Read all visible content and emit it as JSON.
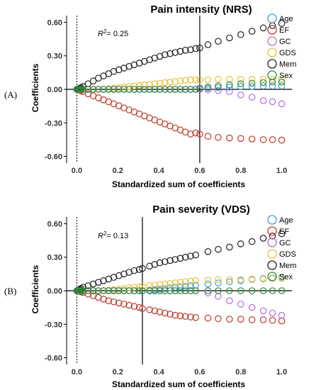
{
  "panels": [
    {
      "label": "(A)"
    },
    {
      "label": "(B)"
    }
  ],
  "chart_data": [
    {
      "type": "scatter",
      "title": "Pain intensity (NRS)",
      "xlabel": "Standardized sum of coefficients",
      "ylabel": "Coefficients",
      "annotation_prefix": "R",
      "annotation_sup": "2",
      "annotation_value": "= 0.25",
      "xlim": [
        -0.05,
        1.05
      ],
      "ylim": [
        -0.66,
        0.66
      ],
      "xticks": [
        "0.0",
        "0.2",
        "0.4",
        "0.6",
        "0.8",
        "1.0"
      ],
      "yticks": [
        "0.60",
        "0.30",
        "0.00",
        "-0.30",
        "-0.60"
      ],
      "reference_line_x": 0.6,
      "dotted_line_x": 0.0,
      "legend_position": "top-right",
      "x": [
        0.0,
        0.005,
        0.01,
        0.015,
        0.02,
        0.03,
        0.055,
        0.08,
        0.105,
        0.13,
        0.155,
        0.18,
        0.205,
        0.23,
        0.255,
        0.28,
        0.305,
        0.33,
        0.355,
        0.38,
        0.405,
        0.43,
        0.455,
        0.48,
        0.505,
        0.53,
        0.555,
        0.58,
        0.6,
        0.64,
        0.69,
        0.745,
        0.8,
        0.855,
        0.91,
        0.955,
        1.0
      ],
      "series": [
        {
          "name": "Age",
          "color": "#3da0d8",
          "values": [
            0.0,
            0.0,
            0.0,
            0.0,
            0.0,
            0.0,
            0.0,
            0.0,
            0.0,
            0.0,
            0.0,
            0.0,
            0.0,
            0.0,
            0.0,
            0.0,
            0.0,
            0.0,
            0.0,
            0.0,
            0.0,
            0.0,
            0.0,
            0.0,
            0.0,
            0.0,
            0.0,
            0.0,
            0.0,
            0.01,
            0.015,
            0.02,
            0.025,
            0.025,
            0.03,
            0.03,
            0.03
          ]
        },
        {
          "name": "EF",
          "color": "#c0392b",
          "values": [
            0.0,
            -0.002,
            -0.005,
            -0.008,
            -0.012,
            -0.02,
            -0.04,
            -0.058,
            -0.076,
            -0.094,
            -0.112,
            -0.13,
            -0.148,
            -0.166,
            -0.184,
            -0.202,
            -0.22,
            -0.238,
            -0.256,
            -0.274,
            -0.292,
            -0.31,
            -0.328,
            -0.346,
            -0.364,
            -0.382,
            -0.4,
            -0.39,
            -0.4,
            -0.42,
            -0.43,
            -0.435,
            -0.44,
            -0.445,
            -0.45,
            -0.45,
            -0.455
          ]
        },
        {
          "name": "GC",
          "color": "#b36be0",
          "values": [
            0.0,
            0.0,
            0.0,
            0.0,
            0.0,
            0.0,
            0.0,
            0.0,
            0.0,
            0.0,
            0.0,
            0.0,
            0.0,
            0.0,
            0.0,
            0.0,
            0.0,
            0.0,
            0.0,
            0.0,
            0.0,
            0.0,
            0.0,
            0.0,
            0.0,
            0.0,
            0.0,
            0.0,
            0.0,
            -0.005,
            -0.01,
            -0.02,
            -0.05,
            -0.07,
            -0.1,
            -0.11,
            -0.13
          ]
        },
        {
          "name": "GDS",
          "color": "#e8c23a",
          "values": [
            0.0,
            0.0,
            0.0,
            0.0,
            0.0,
            0.0,
            0.0,
            0.0,
            0.0,
            0.0,
            0.005,
            0.01,
            0.015,
            0.02,
            0.025,
            0.03,
            0.035,
            0.04,
            0.045,
            0.05,
            0.055,
            0.06,
            0.065,
            0.07,
            0.075,
            0.08,
            0.085,
            0.085,
            0.085,
            0.085,
            0.09,
            0.09,
            0.09,
            0.09,
            0.09,
            0.09,
            0.09
          ]
        },
        {
          "name": "Mem",
          "color": "#222222",
          "values": [
            0.0,
            0.003,
            0.006,
            0.01,
            0.015,
            0.025,
            0.05,
            0.075,
            0.1,
            0.12,
            0.14,
            0.16,
            0.175,
            0.19,
            0.205,
            0.22,
            0.235,
            0.25,
            0.265,
            0.28,
            0.295,
            0.31,
            0.32,
            0.33,
            0.34,
            0.35,
            0.355,
            0.365,
            0.37,
            0.4,
            0.43,
            0.46,
            0.49,
            0.52,
            0.55,
            0.57,
            0.59
          ]
        },
        {
          "name": "Sex",
          "color": "#2e8b3e",
          "values": [
            0.0,
            0.0,
            0.0,
            0.0,
            0.0,
            0.0,
            0.0,
            0.0,
            0.0,
            0.0,
            0.0,
            0.0,
            0.0,
            0.0,
            0.0,
            0.0,
            0.0,
            0.0,
            0.0,
            0.0,
            0.0,
            0.0,
            0.0,
            0.0,
            0.0,
            0.0,
            0.0,
            0.0,
            0.01,
            0.02,
            0.03,
            0.04,
            0.05,
            0.055,
            0.06,
            0.065,
            0.065
          ]
        }
      ]
    },
    {
      "type": "scatter",
      "title": "Pain severity (VDS)",
      "xlabel": "Standardized sum of coefficients",
      "ylabel": "Coefficients",
      "annotation_prefix": "R",
      "annotation_sup": "2",
      "annotation_value": "= 0.13",
      "xlim": [
        -0.05,
        1.05
      ],
      "ylim": [
        -0.66,
        0.66
      ],
      "xticks": [
        "0.0",
        "0.2",
        "0.4",
        "0.6",
        "0.8",
        "1.0"
      ],
      "yticks": [
        "0.60",
        "0.30",
        "0.00",
        "-0.30",
        "-0.60"
      ],
      "reference_line_x": 0.32,
      "dotted_line_x": 0.0,
      "legend_position": "top-right",
      "x": [
        0.0,
        0.005,
        0.01,
        0.015,
        0.02,
        0.03,
        0.055,
        0.08,
        0.105,
        0.13,
        0.155,
        0.18,
        0.205,
        0.23,
        0.255,
        0.28,
        0.305,
        0.32,
        0.355,
        0.38,
        0.405,
        0.43,
        0.455,
        0.48,
        0.505,
        0.53,
        0.555,
        0.58,
        0.64,
        0.69,
        0.745,
        0.8,
        0.855,
        0.91,
        0.955,
        1.0
      ],
      "series": [
        {
          "name": "Age",
          "color": "#3da0d8",
          "values": [
            0.0,
            0.0,
            0.0,
            0.0,
            0.0,
            0.0,
            0.0,
            0.0,
            0.0,
            0.0,
            0.0,
            0.0,
            0.0,
            0.0,
            0.0,
            0.0,
            0.0,
            0.0,
            0.005,
            0.01,
            0.015,
            0.02,
            0.025,
            0.03,
            0.035,
            0.04,
            0.045,
            0.05,
            0.06,
            0.07,
            0.08,
            0.09,
            0.1,
            0.11,
            0.115,
            0.12
          ]
        },
        {
          "name": "EF",
          "color": "#c0392b",
          "values": [
            0.0,
            -0.002,
            -0.004,
            -0.006,
            -0.01,
            -0.015,
            -0.03,
            -0.045,
            -0.06,
            -0.075,
            -0.09,
            -0.1,
            -0.11,
            -0.12,
            -0.13,
            -0.14,
            -0.15,
            -0.16,
            -0.17,
            -0.18,
            -0.19,
            -0.2,
            -0.21,
            -0.22,
            -0.225,
            -0.23,
            -0.235,
            -0.24,
            -0.245,
            -0.25,
            -0.255,
            -0.255,
            -0.26,
            -0.26,
            -0.265,
            -0.27
          ]
        },
        {
          "name": "GC",
          "color": "#b36be0",
          "values": [
            0.0,
            0.0,
            0.0,
            0.0,
            0.0,
            0.0,
            0.0,
            0.0,
            0.0,
            0.0,
            0.0,
            0.0,
            0.0,
            0.0,
            0.0,
            0.0,
            0.0,
            0.0,
            0.0,
            0.0,
            0.0,
            0.0,
            0.0,
            0.0,
            0.0,
            0.0,
            0.0,
            0.0,
            -0.02,
            -0.05,
            -0.09,
            -0.12,
            -0.15,
            -0.18,
            -0.2,
            -0.22
          ]
        },
        {
          "name": "GDS",
          "color": "#e8c23a",
          "values": [
            0.0,
            0.0,
            0.0,
            0.0,
            0.0,
            0.0,
            0.0,
            0.0,
            0.0,
            0.0,
            0.005,
            0.01,
            0.015,
            0.02,
            0.025,
            0.03,
            0.035,
            0.04,
            0.045,
            0.05,
            0.055,
            0.06,
            0.065,
            0.07,
            0.075,
            0.08,
            0.085,
            0.09,
            0.095,
            0.1,
            0.1,
            0.1,
            0.105,
            0.105,
            0.11,
            0.11
          ]
        },
        {
          "name": "Mem",
          "color": "#222222",
          "values": [
            0.0,
            0.004,
            0.008,
            0.012,
            0.02,
            0.03,
            0.045,
            0.06,
            0.075,
            0.09,
            0.105,
            0.12,
            0.135,
            0.15,
            0.165,
            0.18,
            0.19,
            0.2,
            0.22,
            0.235,
            0.25,
            0.26,
            0.27,
            0.28,
            0.29,
            0.3,
            0.31,
            0.32,
            0.35,
            0.37,
            0.39,
            0.42,
            0.44,
            0.47,
            0.49,
            0.51
          ]
        },
        {
          "name": "Sex",
          "color": "#2e8b3e",
          "values": [
            0.0,
            0.0,
            0.0,
            0.0,
            0.0,
            0.0,
            0.0,
            0.0,
            0.0,
            0.0,
            0.0,
            0.0,
            0.0,
            0.0,
            0.0,
            0.0,
            0.0,
            0.0,
            0.0,
            0.0,
            0.0,
            0.0,
            0.0,
            0.0,
            0.0,
            0.0,
            0.0,
            0.0,
            0.0,
            0.0,
            0.0,
            0.0,
            0.0,
            0.0,
            0.0,
            0.0
          ]
        }
      ]
    }
  ]
}
